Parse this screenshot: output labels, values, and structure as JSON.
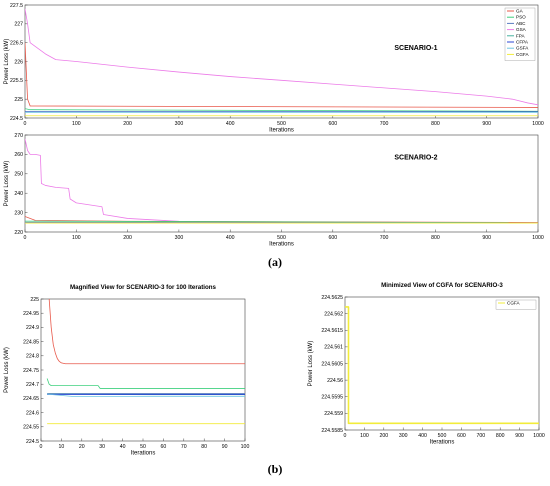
{
  "captions": {
    "a": "(a)",
    "b": "(b)"
  },
  "colors": {
    "GA": "#e8584a",
    "PSO": "#3fd07e",
    "ABC": "#5a7cc0",
    "GSA": "#ec7be8",
    "FPA": "#45b0a0",
    "CFPA": "#2b47d6",
    "GSFA": "#6fc6e0",
    "CGFA": "#f2ec3a"
  },
  "chart_data": [
    {
      "id": "s1",
      "type": "line",
      "title": "SCENARIO-1",
      "xlabel": "Iterations",
      "ylabel": "Power Loss (kW)",
      "xlim": [
        0,
        1000
      ],
      "ylim": [
        224.5,
        227.5
      ],
      "xticks": [
        0,
        100,
        200,
        300,
        400,
        500,
        600,
        700,
        800,
        900,
        1000
      ],
      "yticks": [
        224.5,
        225,
        225.5,
        226,
        226.5,
        227,
        227.5
      ],
      "ytick_labels": [
        "224.5",
        "225",
        "225.5",
        "226",
        "226.5",
        "227",
        "227.5"
      ],
      "legend": {
        "position": "top-right",
        "entries": [
          "GA",
          "PSO",
          "ABC",
          "GSA",
          "FPA",
          "CFPA",
          "GSFA",
          "CGFA"
        ]
      },
      "series": [
        {
          "name": "GSA",
          "x": [
            0,
            5,
            10,
            20,
            40,
            60,
            100,
            200,
            300,
            400,
            500,
            600,
            700,
            800,
            900,
            950,
            980,
            1000
          ],
          "y": [
            227.4,
            227.0,
            226.5,
            226.4,
            226.2,
            226.05,
            226.0,
            225.85,
            225.72,
            225.6,
            225.5,
            225.4,
            225.3,
            225.2,
            225.08,
            225.0,
            224.9,
            224.85
          ]
        },
        {
          "name": "GA",
          "x": [
            0,
            5,
            10,
            1000
          ],
          "y": [
            226.5,
            225.0,
            224.82,
            224.78
          ]
        },
        {
          "name": "PSO",
          "x": [
            0,
            10,
            1000
          ],
          "y": [
            224.75,
            224.72,
            224.68
          ]
        },
        {
          "name": "ABC",
          "x": [
            0,
            1000
          ],
          "y": [
            224.67,
            224.67
          ]
        },
        {
          "name": "FPA",
          "x": [
            0,
            1000
          ],
          "y": [
            224.66,
            224.66
          ]
        },
        {
          "name": "CFPA",
          "x": [
            0,
            1000
          ],
          "y": [
            224.66,
            224.66
          ]
        },
        {
          "name": "GSFA",
          "x": [
            0,
            1000
          ],
          "y": [
            224.65,
            224.65
          ]
        },
        {
          "name": "CGFA",
          "x": [
            0,
            1000
          ],
          "y": [
            224.56,
            224.56
          ]
        }
      ]
    },
    {
      "id": "s2",
      "type": "line",
      "title": "SCENARIO-2",
      "xlabel": "Iterations",
      "ylabel": "Power Loss (kW)",
      "xlim": [
        0,
        1000
      ],
      "ylim": [
        220,
        270
      ],
      "xticks": [
        0,
        100,
        200,
        300,
        400,
        500,
        600,
        700,
        800,
        900,
        1000
      ],
      "yticks": [
        220,
        230,
        240,
        250,
        260,
        270
      ],
      "ytick_labels": [
        "220",
        "230",
        "240",
        "250",
        "260",
        "270"
      ],
      "series": [
        {
          "name": "GSA",
          "x": [
            0,
            5,
            10,
            20,
            30,
            32,
            40,
            60,
            85,
            88,
            100,
            150,
            153,
            200,
            300,
            500,
            1000
          ],
          "y": [
            268,
            262,
            260,
            260,
            259.5,
            245,
            244,
            243,
            242.5,
            237,
            235,
            233,
            229,
            227,
            225.5,
            225,
            224.7
          ]
        },
        {
          "name": "GA",
          "x": [
            0,
            20,
            200,
            1000
          ],
          "y": [
            228,
            226,
            225.5,
            224.9
          ]
        },
        {
          "name": "PSO",
          "x": [
            0,
            1000
          ],
          "y": [
            225.6,
            224.8
          ]
        },
        {
          "name": "ABC",
          "x": [
            0,
            1000
          ],
          "y": [
            225.0,
            224.7
          ]
        },
        {
          "name": "CGFA",
          "x": [
            0,
            1000
          ],
          "y": [
            224.6,
            224.6
          ]
        }
      ]
    },
    {
      "id": "s3",
      "type": "line",
      "title": "Magnified View for SCENARIO-3 for 100 Iterations",
      "xlabel": "Iterations",
      "ylabel": "Power Loss (kW)",
      "xlim": [
        0,
        100
      ],
      "ylim": [
        224.5,
        225
      ],
      "xticks": [
        0,
        10,
        20,
        30,
        40,
        50,
        60,
        70,
        80,
        90,
        100
      ],
      "yticks": [
        224.5,
        224.55,
        224.6,
        224.65,
        224.7,
        224.75,
        224.8,
        224.85,
        224.9,
        224.95,
        225
      ],
      "ytick_labels": [
        "224.5",
        "224.55",
        "224.6",
        "224.65",
        "224.7",
        "224.75",
        "224.8",
        "224.85",
        "224.9",
        "224.95",
        "225"
      ],
      "series": [
        {
          "name": "GA",
          "x": [
            4,
            5,
            6,
            7,
            8,
            9,
            10,
            12,
            100
          ],
          "y": [
            225.0,
            224.9,
            224.84,
            224.81,
            224.79,
            224.78,
            224.775,
            224.772,
            224.772
          ]
        },
        {
          "name": "PSO",
          "x": [
            3,
            4,
            5,
            28,
            29,
            100
          ],
          "y": [
            224.72,
            224.7,
            224.695,
            224.695,
            224.685,
            224.685
          ]
        },
        {
          "name": "ABC",
          "x": [
            3,
            100
          ],
          "y": [
            224.667,
            224.667
          ]
        },
        {
          "name": "FPA",
          "x": [
            3,
            55,
            100
          ],
          "y": [
            224.665,
            224.663,
            224.663
          ]
        },
        {
          "name": "CFPA",
          "x": [
            3,
            100
          ],
          "y": [
            224.664,
            224.664
          ]
        },
        {
          "name": "GSFA",
          "x": [
            3,
            15,
            100
          ],
          "y": [
            224.665,
            224.657,
            224.657
          ]
        },
        {
          "name": "CGFA",
          "x": [
            3,
            100
          ],
          "y": [
            224.561,
            224.561
          ]
        }
      ]
    },
    {
      "id": "s4",
      "type": "line",
      "title": "Minimized View of CGFA for SCENARIO-3",
      "xlabel": "Iterations",
      "ylabel": "Power Loss (kW)",
      "xlim": [
        0,
        1000
      ],
      "ylim": [
        224.5585,
        224.5625
      ],
      "xticks": [
        0,
        100,
        200,
        300,
        400,
        500,
        600,
        700,
        800,
        900,
        1000
      ],
      "yticks": [
        224.5585,
        224.559,
        224.5595,
        224.56,
        224.5605,
        224.561,
        224.5615,
        224.562,
        224.5625
      ],
      "ytick_labels": [
        "224.5585",
        "224.559",
        "224.5595",
        "224.56",
        "224.5605",
        "224.561",
        "224.5615",
        "224.562",
        "224.5625"
      ],
      "legend": {
        "position": "top-right",
        "entries": [
          "CGFA"
        ]
      },
      "series": [
        {
          "name": "CGFA",
          "x": [
            0,
            18,
            18,
            1000
          ],
          "y": [
            224.5622,
            224.5622,
            224.5587,
            224.5587
          ]
        }
      ]
    }
  ]
}
